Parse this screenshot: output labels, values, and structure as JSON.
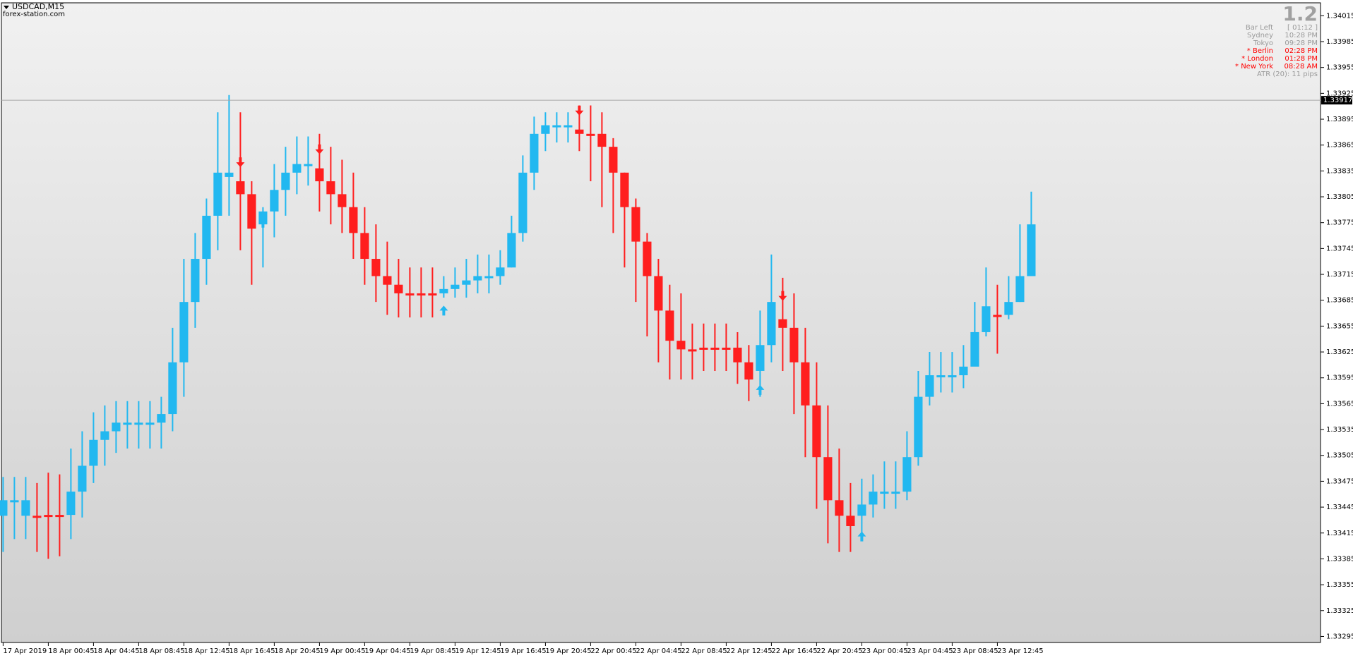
{
  "chart_data": {
    "type": "candlestick",
    "title": "USDCAD,M15",
    "subtitle": "forex-station.com",
    "colors": {
      "up": "#22b8f0",
      "down": "#ff1e1e"
    },
    "xlim": [
      -0.15,
      116.6
    ],
    "ylim": [
      1.33288,
      1.3403
    ],
    "yticks": [
      1.34015,
      1.33985,
      1.33955,
      1.33925,
      1.33895,
      1.33865,
      1.33835,
      1.33805,
      1.33775,
      1.33745,
      1.33715,
      1.33685,
      1.33655,
      1.33625,
      1.33595,
      1.33565,
      1.33535,
      1.33505,
      1.33475,
      1.33445,
      1.33415,
      1.33385,
      1.33355,
      1.33325,
      1.33295
    ],
    "xticks": [
      {
        "value": 0,
        "label": "17 Apr 2019"
      },
      {
        "value": 4,
        "label": "18 Apr 00:45"
      },
      {
        "value": 8,
        "label": "18 Apr 04:45"
      },
      {
        "value": 12,
        "label": "18 Apr 08:45"
      },
      {
        "value": 16,
        "label": "18 Apr 12:45"
      },
      {
        "value": 20,
        "label": "18 Apr 16:45"
      },
      {
        "value": 24,
        "label": "18 Apr 20:45"
      },
      {
        "value": 28,
        "label": "19 Apr 00:45"
      },
      {
        "value": 32,
        "label": "19 Apr 04:45"
      },
      {
        "value": 36,
        "label": "19 Apr 08:45"
      },
      {
        "value": 40,
        "label": "19 Apr 12:45"
      },
      {
        "value": 44,
        "label": "19 Apr 16:45"
      },
      {
        "value": 48,
        "label": "19 Apr 20:45"
      },
      {
        "value": 52,
        "label": "22 Apr 00:45"
      },
      {
        "value": 56,
        "label": "22 Apr 04:45"
      },
      {
        "value": 60,
        "label": "22 Apr 08:45"
      },
      {
        "value": 64,
        "label": "22 Apr 12:45"
      },
      {
        "value": 68,
        "label": "22 Apr 16:45"
      },
      {
        "value": 72,
        "label": "22 Apr 20:45"
      },
      {
        "value": 76,
        "label": "23 Apr 00:45"
      },
      {
        "value": 80,
        "label": "23 Apr 04:45"
      },
      {
        "value": 84,
        "label": "23 Apr 08:45"
      },
      {
        "value": 88,
        "label": "23 Apr 12:45"
      }
    ],
    "high": [
      1.3348,
      1.3348,
      1.3348,
      1.33473,
      1.33485,
      1.33483,
      1.33513,
      1.33533,
      1.33555,
      1.33563,
      1.33568,
      1.33568,
      1.33568,
      1.33568,
      1.33573,
      1.33653,
      1.33733,
      1.33763,
      1.33803,
      1.33903,
      1.33923,
      1.33903,
      1.33823,
      1.33793,
      1.33843,
      1.33863,
      1.33875,
      1.33875,
      1.33878,
      1.33863,
      1.33848,
      1.33833,
      1.33793,
      1.33773,
      1.33753,
      1.33733,
      1.33723,
      1.33723,
      1.33723,
      1.33713,
      1.33723,
      1.33733,
      1.33738,
      1.33738,
      1.33743,
      1.33783,
      1.33853,
      1.33898,
      1.33903,
      1.33903,
      1.33903,
      1.33911,
      1.33911,
      1.33903,
      1.33873,
      1.33833,
      1.33803,
      1.33763,
      1.33733,
      1.33703,
      1.33693,
      1.33658,
      1.33658,
      1.33658,
      1.33658,
      1.33648,
      1.33633,
      1.33673,
      1.33738,
      1.33711,
      1.33693,
      1.33653,
      1.33613,
      1.33563,
      1.33513,
      1.33473,
      1.33478,
      1.33483,
      1.33498,
      1.33498,
      1.33533,
      1.33603,
      1.33625,
      1.33625,
      1.33625,
      1.33633,
      1.33683,
      1.33723,
      1.33703,
      1.33713,
      1.33773,
      1.33811
    ],
    "low": [
      1.33393,
      1.33408,
      1.33408,
      1.33393,
      1.33385,
      1.33388,
      1.33408,
      1.33433,
      1.33473,
      1.33493,
      1.33508,
      1.33513,
      1.33513,
      1.33513,
      1.33513,
      1.33533,
      1.33573,
      1.33653,
      1.33703,
      1.33743,
      1.33783,
      1.33743,
      1.33703,
      1.33723,
      1.33758,
      1.33783,
      1.33808,
      1.33818,
      1.33788,
      1.33773,
      1.33763,
      1.33733,
      1.33703,
      1.33683,
      1.33668,
      1.33665,
      1.33665,
      1.33665,
      1.33665,
      1.33688,
      1.33688,
      1.33688,
      1.33693,
      1.33693,
      1.33703,
      1.33723,
      1.33753,
      1.33813,
      1.33858,
      1.33868,
      1.33868,
      1.33858,
      1.33823,
      1.33793,
      1.33763,
      1.33723,
      1.33683,
      1.33643,
      1.33613,
      1.33593,
      1.33593,
      1.33593,
      1.33603,
      1.33603,
      1.33603,
      1.33588,
      1.33568,
      1.33573,
      1.33613,
      1.33603,
      1.33553,
      1.33503,
      1.33443,
      1.33403,
      1.33393,
      1.33393,
      1.33408,
      1.33433,
      1.33443,
      1.33443,
      1.33453,
      1.33493,
      1.33563,
      1.33578,
      1.33578,
      1.33583,
      1.33613,
      1.33643,
      1.33623,
      1.33663,
      1.33683,
      1.33713
    ],
    "open": [
      1.33435,
      1.33453,
      1.33453,
      1.33435,
      1.33436,
      1.33436,
      1.33436,
      1.33463,
      1.33493,
      1.33523,
      1.33533,
      1.33543,
      1.33543,
      1.33543,
      1.33543,
      1.33553,
      1.33613,
      1.33683,
      1.33733,
      1.33783,
      1.33833,
      1.33823,
      1.33808,
      1.33773,
      1.33788,
      1.33813,
      1.33833,
      1.33843,
      1.33838,
      1.33823,
      1.33808,
      1.33793,
      1.33763,
      1.33733,
      1.33713,
      1.33703,
      1.33693,
      1.33693,
      1.33693,
      1.33693,
      1.33698,
      1.33703,
      1.33708,
      1.33713,
      1.33713,
      1.33723,
      1.33763,
      1.33833,
      1.33878,
      1.33888,
      1.33888,
      1.33883,
      1.33878,
      1.33878,
      1.33863,
      1.33833,
      1.33793,
      1.33753,
      1.33713,
      1.33673,
      1.33638,
      1.33628,
      1.3363,
      1.3363,
      1.3363,
      1.3363,
      1.33613,
      1.33603,
      1.33633,
      1.33663,
      1.33653,
      1.33613,
      1.33563,
      1.33503,
      1.33453,
      1.33435,
      1.33435,
      1.33448,
      1.33463,
      1.33463,
      1.33463,
      1.33503,
      1.33573,
      1.33598,
      1.33598,
      1.33598,
      1.33608,
      1.33648,
      1.33668,
      1.33668,
      1.33683,
      1.33713
    ],
    "close": [
      1.33453,
      1.33453,
      1.33435,
      1.33435,
      1.33436,
      1.33436,
      1.33463,
      1.33493,
      1.33523,
      1.33533,
      1.33543,
      1.33543,
      1.33543,
      1.33543,
      1.33553,
      1.33613,
      1.33683,
      1.33733,
      1.33783,
      1.33833,
      1.33828,
      1.33808,
      1.33768,
      1.33788,
      1.33813,
      1.33833,
      1.33843,
      1.33843,
      1.33823,
      1.33808,
      1.33793,
      1.33763,
      1.33733,
      1.33713,
      1.33703,
      1.33693,
      1.33693,
      1.33693,
      1.33693,
      1.33698,
      1.33703,
      1.33708,
      1.33713,
      1.33713,
      1.33723,
      1.33763,
      1.33833,
      1.33878,
      1.33888,
      1.33888,
      1.33888,
      1.33878,
      1.33878,
      1.33863,
      1.33833,
      1.33793,
      1.33753,
      1.33713,
      1.33673,
      1.33638,
      1.33628,
      1.33628,
      1.3363,
      1.3363,
      1.3363,
      1.33613,
      1.33593,
      1.33633,
      1.33683,
      1.33653,
      1.33613,
      1.33563,
      1.33503,
      1.33453,
      1.33435,
      1.33423,
      1.33448,
      1.33463,
      1.33463,
      1.33463,
      1.33503,
      1.33573,
      1.33598,
      1.33598,
      1.33598,
      1.33608,
      1.33648,
      1.33678,
      1.33668,
      1.33683,
      1.33713,
      1.33773
    ],
    "trend": [
      "up",
      "up",
      "up",
      "down",
      "down",
      "down",
      "up",
      "up",
      "up",
      "up",
      "up",
      "up",
      "up",
      "up",
      "up",
      "up",
      "up",
      "up",
      "up",
      "up",
      "up",
      "down",
      "down",
      "up",
      "up",
      "up",
      "up",
      "up",
      "down",
      "down",
      "down",
      "down",
      "down",
      "down",
      "down",
      "down",
      "down",
      "down",
      "down",
      "up",
      "up",
      "up",
      "up",
      "up",
      "up",
      "up",
      "up",
      "up",
      "up",
      "up",
      "up",
      "down",
      "down",
      "down",
      "down",
      "down",
      "down",
      "down",
      "down",
      "down",
      "down",
      "down",
      "down",
      "down",
      "down",
      "down",
      "down",
      "up",
      "up",
      "down",
      "down",
      "down",
      "down",
      "down",
      "down",
      "down",
      "up",
      "up",
      "up",
      "up",
      "up",
      "up",
      "up",
      "up",
      "up",
      "up",
      "up",
      "up",
      "down",
      "up",
      "up",
      "up"
    ],
    "up_signals": {
      "x": [
        23,
        39,
        67,
        76
      ],
      "values": [
        1.33775,
        1.33673,
        1.33581,
        1.33411
      ]
    },
    "down_signals": {
      "x": [
        21,
        28,
        51,
        69
      ],
      "values": [
        1.33845,
        1.3386,
        1.33905,
        1.3369
      ]
    },
    "current_price": 1.33917,
    "info_panel": {
      "title": "1.2",
      "rows": [
        {
          "label": "Bar Left",
          "value": "[ 01:12 ]",
          "color": "#9a9a9a"
        },
        {
          "label": "Sydney",
          "value": "10:28 PM",
          "color": "#9a9a9a"
        },
        {
          "label": "Tokyo",
          "value": "09:28 PM",
          "color": "#9a9a9a"
        },
        {
          "label": "* Berlin",
          "value": "02:28 PM",
          "color": "#ff0000"
        },
        {
          "label": "* London",
          "value": "01:28 PM",
          "color": "#ff0000"
        },
        {
          "label": "* New York",
          "value": "08:28 AM",
          "color": "#ff0000"
        }
      ],
      "atr": "ATR (20): 11 pips"
    }
  }
}
